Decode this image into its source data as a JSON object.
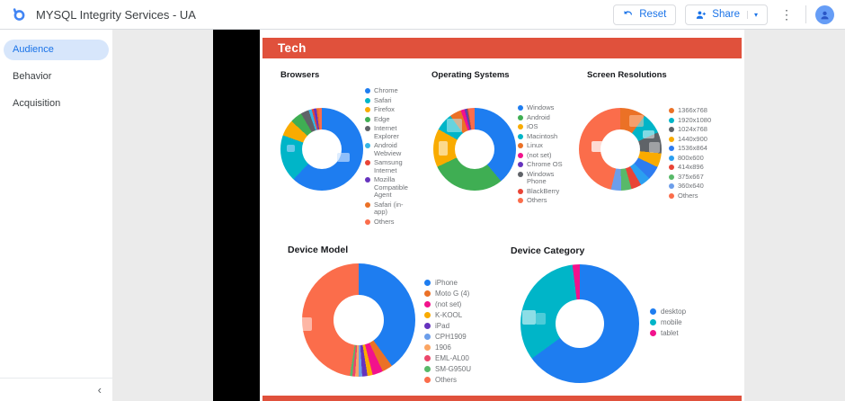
{
  "header": {
    "title": "MYSQL Integrity Services - UA",
    "reset_label": "Reset",
    "share_label": "Share",
    "share_caret": "▾",
    "more_glyph": "⋮",
    "accent_color": "#1a73e8"
  },
  "sidebar": {
    "items": [
      {
        "label": "Audience"
      },
      {
        "label": "Behavior"
      },
      {
        "label": "Acquisition"
      }
    ],
    "collapse_glyph": "‹"
  },
  "report": {
    "section_title": "Tech",
    "banner_color": "#e0513c"
  },
  "chart_data": [
    {
      "type": "donut",
      "title": "Browsers",
      "labels": [
        "Chrome",
        "Safari",
        "Firefox",
        "Edge",
        "Internet Explorer",
        "Android Webview",
        "Samsung Internet",
        "Mozilla Compatible Agent",
        "Safari (in-app)",
        "Others"
      ],
      "values": [
        62,
        18.5,
        6.4,
        4.7,
        3.2,
        1.2,
        0.8,
        1.1,
        0.8,
        1.3
      ],
      "colors": [
        "#1E7DF0",
        "#00B5C8",
        "#F9AB00",
        "#3FAE53",
        "#5F6368",
        "#35B5E5",
        "#E94436",
        "#6633BE",
        "#EB7126",
        "#FB6D4B"
      ],
      "legend_position": "right"
    },
    {
      "type": "donut",
      "title": "Operating Systems",
      "labels": [
        "Windows",
        "Android",
        "iOS",
        "Macintosh",
        "Linux",
        "(not set)",
        "Chrome OS",
        "Windows Phone",
        "BlackBerry",
        "Others"
      ],
      "values": [
        39,
        29,
        15,
        7,
        4.5,
        1.5,
        0.8,
        0.4,
        0.3,
        2.5
      ],
      "colors": [
        "#1E7DF0",
        "#3FAE53",
        "#F9AB00",
        "#00B5C8",
        "#EB7126",
        "#F2128C",
        "#6633BE",
        "#5F6368",
        "#E94436",
        "#FB6D4B"
      ],
      "legend_position": "right"
    },
    {
      "type": "donut",
      "title": "Screen Resolutions",
      "labels": [
        "1366x768",
        "1920x1080",
        "1024x768",
        "1440x900",
        "1536x864",
        "800x600",
        "414x896",
        "375x667",
        "360x640",
        "Others"
      ],
      "values": [
        10,
        8.3,
        8.3,
        5.5,
        5.5,
        4,
        4,
        4,
        4,
        46.4
      ],
      "colors": [
        "#EB7126",
        "#00B5C8",
        "#5F6368",
        "#F9AB00",
        "#2E7CF0",
        "#2B9FF0",
        "#E94436",
        "#58B969",
        "#6C9EEA",
        "#FB6D4B"
      ],
      "legend_position": "right"
    },
    {
      "type": "donut",
      "title": "Device Model",
      "labels": [
        "iPhone",
        "Moto G (4)",
        "(not set)",
        "K-KOOL",
        "iPad",
        "CPH1909",
        "1906",
        "EML-AL00",
        "SM-G950U",
        "Others"
      ],
      "values": [
        40,
        3,
        3,
        1.5,
        1.5,
        1,
        1,
        0.8,
        0.7,
        47.5
      ],
      "colors": [
        "#1E7DF0",
        "#EB7126",
        "#F2128C",
        "#F9AB00",
        "#6633BE",
        "#6C9EEA",
        "#FBA563",
        "#EB476B",
        "#58B969",
        "#FB6D4B"
      ],
      "legend_position": "right"
    },
    {
      "type": "donut",
      "title": "Device Category",
      "labels": [
        "desktop",
        "mobile",
        "tablet"
      ],
      "values": [
        65,
        33,
        2
      ],
      "colors": [
        "#1E7DF0",
        "#00B5C8",
        "#F2128C"
      ],
      "legend_position": "right"
    }
  ]
}
